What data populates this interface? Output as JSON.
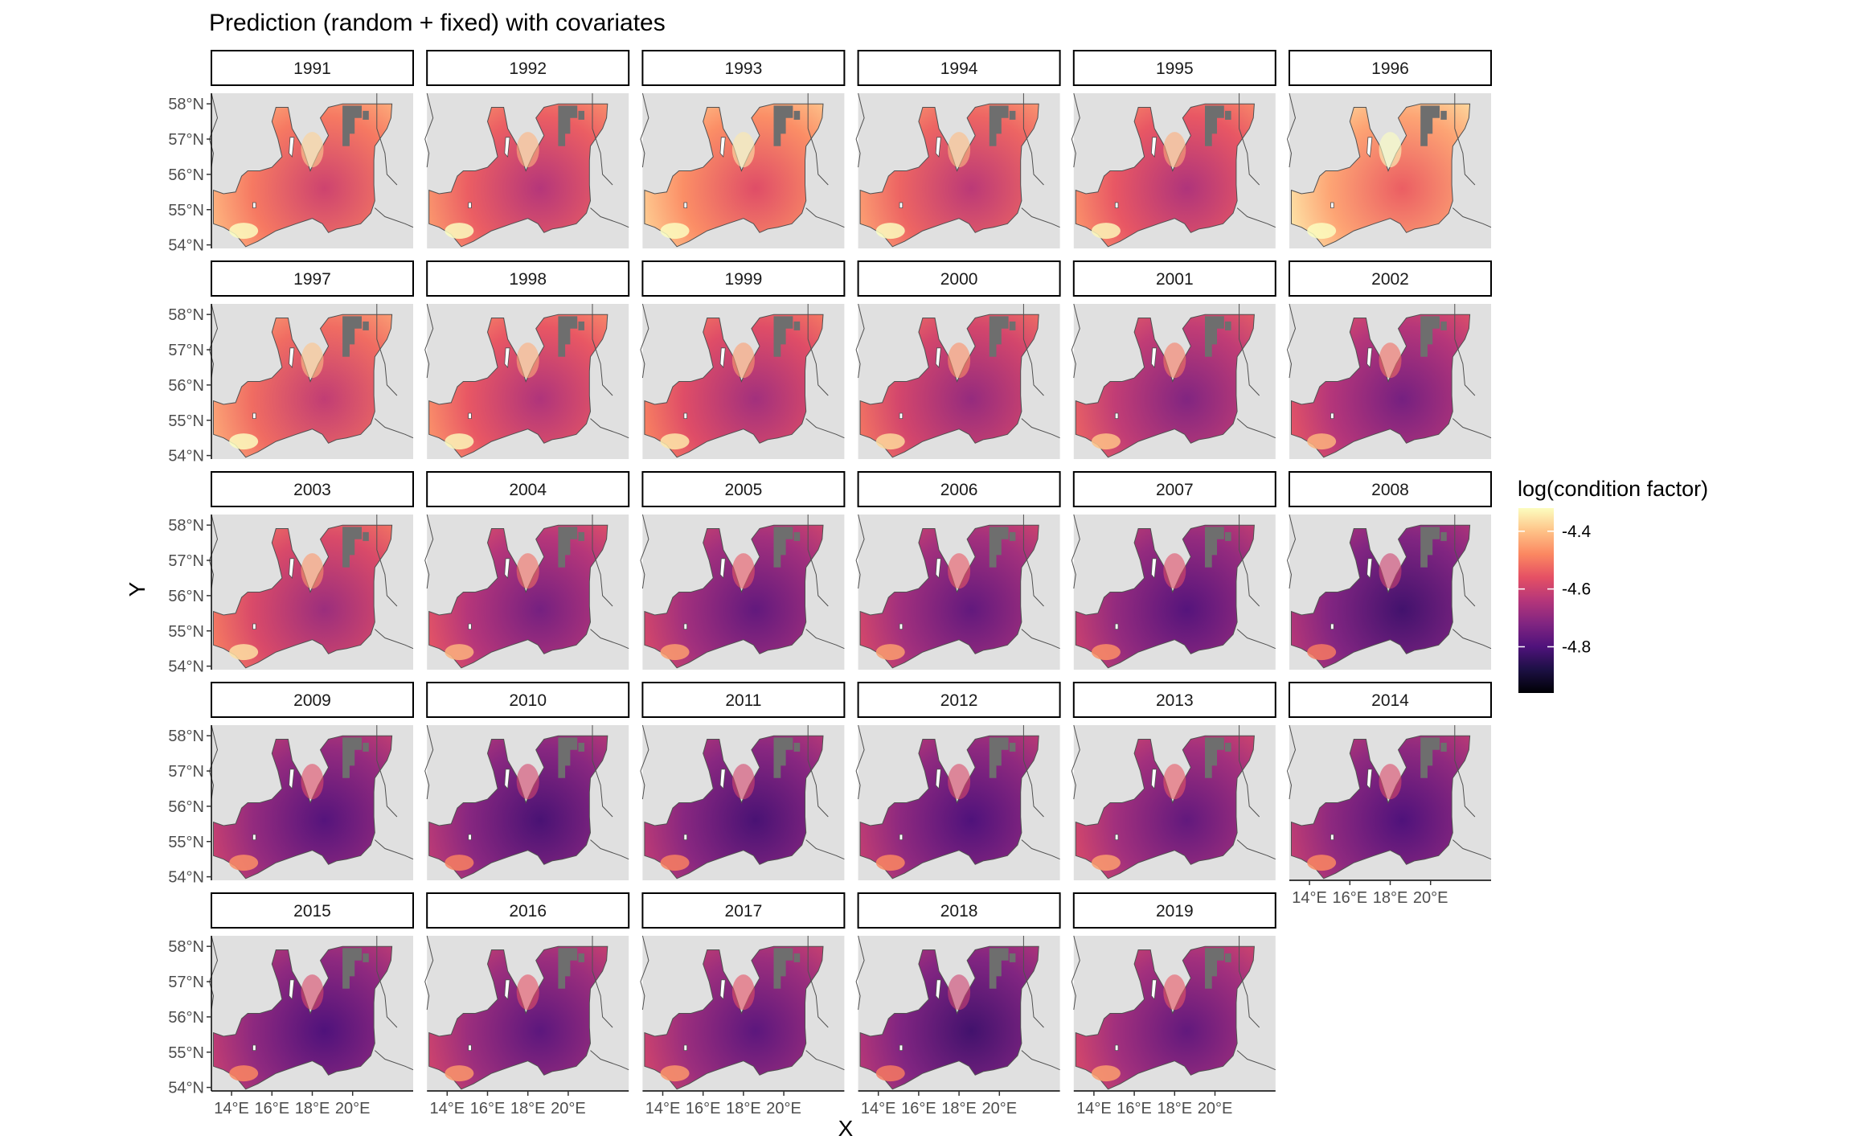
{
  "chart_data": {
    "type": "heatmap",
    "title": "Prediction (random + fixed) with covariates",
    "xlabel": "X",
    "ylabel": "Y",
    "panels": [
      "1991",
      "1992",
      "1993",
      "1994",
      "1995",
      "1996",
      "1997",
      "1998",
      "1999",
      "2000",
      "2001",
      "2002",
      "2003",
      "2004",
      "2005",
      "2006",
      "2007",
      "2008",
      "2009",
      "2010",
      "2011",
      "2012",
      "2013",
      "2014",
      "2015",
      "2016",
      "2017",
      "2018",
      "2019"
    ],
    "panel_mean_value": [
      -4.5,
      -4.54,
      -4.47,
      -4.53,
      -4.55,
      -4.44,
      -4.52,
      -4.55,
      -4.57,
      -4.59,
      -4.62,
      -4.64,
      -4.58,
      -4.64,
      -4.67,
      -4.67,
      -4.69,
      -4.72,
      -4.69,
      -4.71,
      -4.71,
      -4.7,
      -4.67,
      -4.7,
      -4.7,
      -4.68,
      -4.68,
      -4.72,
      -4.67
    ],
    "y_ticks": [
      "54°N",
      "55°N",
      "56°N",
      "57°N",
      "58°N"
    ],
    "y_tick_values": [
      54,
      55,
      56,
      57,
      58
    ],
    "x_ticks": [
      "14°E",
      "16°E",
      "18°E",
      "20°E"
    ],
    "x_tick_values": [
      14,
      16,
      18,
      20
    ],
    "x_range": [
      13.0,
      23.0
    ],
    "y_range": [
      53.9,
      58.3
    ],
    "legend": {
      "title": "log(condition factor)",
      "ticks": [
        "-4.4",
        "-4.6",
        "-4.8"
      ],
      "tick_values": [
        -4.4,
        -4.6,
        -4.8
      ],
      "range": [
        -4.96,
        -4.32
      ],
      "placement": "right",
      "colors": [
        "#000004",
        "#1c1044",
        "#4f127b",
        "#812581",
        "#b5367a",
        "#e55064",
        "#fb8761",
        "#fec287",
        "#fcfdbf"
      ]
    },
    "colors": {
      "land": "#e0e0e0",
      "masked_cells": "#6e6e6e",
      "coastline": "#505050",
      "strip_border": "#000000"
    }
  }
}
